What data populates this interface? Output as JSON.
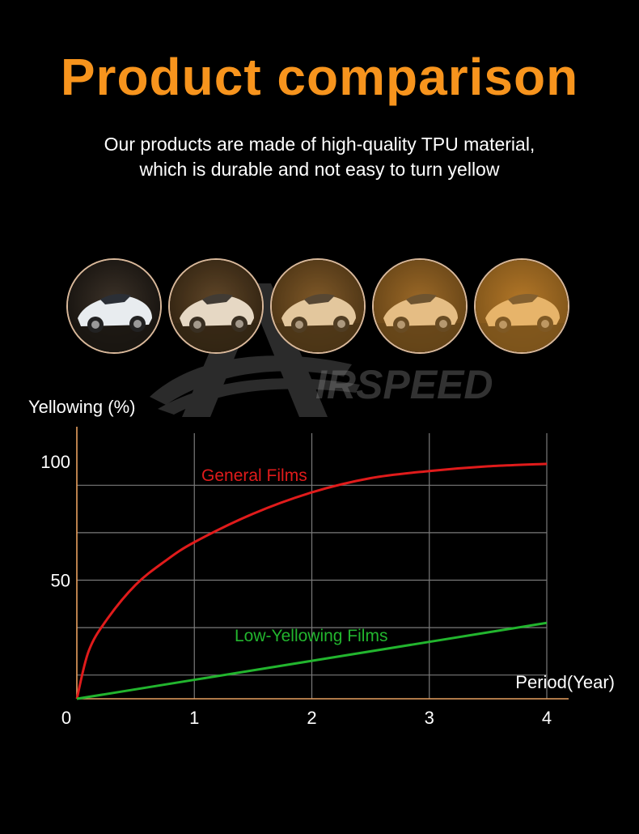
{
  "header": {
    "title": "Product comparison",
    "subtitle_line1": "Our products are made of high-quality TPU material,",
    "subtitle_line2": "which is durable and not easy to turn yellow"
  },
  "watermark": {
    "brand": "IRSPEED"
  },
  "photos": {
    "items": [
      {
        "subject": "white car",
        "tint": "#e8ecef"
      },
      {
        "subject": "white car",
        "tint": "#e6e2da"
      },
      {
        "subject": "white car",
        "tint": "#e3d6c2"
      },
      {
        "subject": "white car",
        "tint": "#e5d3b9"
      },
      {
        "subject": "white car",
        "tint": "#e8cfa8"
      }
    ]
  },
  "colors": {
    "accent": "#f7941d",
    "axis": "#e8a060",
    "grid": "#7a7a7a",
    "general": "#e01b1b",
    "low": "#22b52e"
  },
  "chart_data": {
    "type": "line",
    "ylabel": "Yellowing (%)",
    "xlabel": "Period(Year)",
    "x_ticks": [
      0,
      1,
      2,
      3,
      4
    ],
    "y_ticks": [
      50,
      100
    ],
    "xlim": [
      0,
      4.2
    ],
    "ylim": [
      0,
      117
    ],
    "grid": true,
    "series": [
      {
        "name": "General Films",
        "color": "#e01b1b",
        "x": [
          0,
          0.1,
          0.25,
          0.5,
          0.75,
          1,
          1.5,
          2,
          2.5,
          3,
          3.5,
          4
        ],
        "y": [
          0,
          20,
          33,
          48,
          58,
          66,
          78,
          87,
          93,
          96,
          98,
          99
        ]
      },
      {
        "name": "Low-Yellowing Films",
        "color": "#22b52e",
        "x": [
          0,
          1,
          2,
          3,
          4
        ],
        "y": [
          0,
          8,
          16,
          24,
          32
        ]
      }
    ]
  }
}
